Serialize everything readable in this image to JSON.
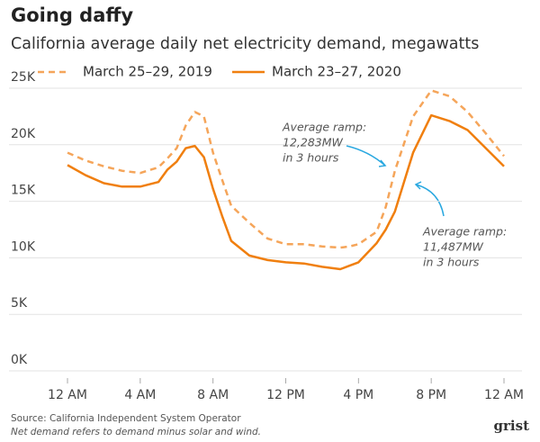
{
  "chart_data": {
    "type": "line",
    "title": "Going daffy",
    "subtitle": "California average daily net electricity demand, megawatts",
    "x": [
      0,
      1,
      2,
      3,
      4,
      5,
      5.5,
      6,
      6.5,
      7,
      7.5,
      8,
      8.5,
      9,
      10,
      11,
      12,
      13,
      14,
      15,
      15.5,
      16,
      17,
      17.5,
      18,
      19,
      20,
      21,
      22,
      23,
      24
    ],
    "series": [
      {
        "name": "March 25–29, 2019",
        "color": "#f5a55a",
        "dashed": true,
        "values": [
          19300,
          18600,
          18100,
          17700,
          17500,
          18000,
          18800,
          19700,
          21700,
          22900,
          22500,
          19300,
          16900,
          14600,
          13100,
          11700,
          11200,
          11200,
          11000,
          10900,
          11000,
          11200,
          12300,
          14500,
          17700,
          22500,
          24800,
          24300,
          22900,
          21000,
          19000
        ]
      },
      {
        "name": "March 23–27, 2020",
        "color": "#f07f0f",
        "dashed": false,
        "values": [
          18200,
          17300,
          16600,
          16300,
          16300,
          16700,
          17800,
          18500,
          19700,
          19900,
          18900,
          16100,
          13700,
          11500,
          10200,
          9800,
          9600,
          9500,
          9200,
          9000,
          9300,
          9600,
          11300,
          12500,
          14100,
          19300,
          22600,
          22100,
          21300,
          19700,
          18100
        ]
      }
    ],
    "xlim": [
      0,
      24
    ],
    "xticks": [
      {
        "value": 0,
        "label": "12 AM"
      },
      {
        "value": 4,
        "label": "4 AM"
      },
      {
        "value": 8,
        "label": "8 AM"
      },
      {
        "value": 12,
        "label": "12 PM"
      },
      {
        "value": 16,
        "label": "4 PM"
      },
      {
        "value": 20,
        "label": "8 PM"
      },
      {
        "value": 24,
        "label": "12 AM"
      }
    ],
    "ylim": [
      0,
      25000
    ],
    "yticks": [
      {
        "value": 0,
        "label": "0K"
      },
      {
        "value": 5000,
        "label": "5K"
      },
      {
        "value": 10000,
        "label": "10K"
      },
      {
        "value": 15000,
        "label": "15K"
      },
      {
        "value": 20000,
        "label": "20K"
      },
      {
        "value": 25000,
        "label": "25K"
      }
    ],
    "grid": true,
    "annotations": [
      {
        "lines": [
          "Average ramp:",
          "12,283MW",
          "in 3 hours"
        ]
      },
      {
        "lines": [
          "Average ramp:",
          "11,487MW",
          "in 3 hours"
        ]
      }
    ],
    "source": "Source: California Independent System Operator",
    "note": "Net demand refers to demand minus solar and wind.",
    "logo": "grist"
  }
}
